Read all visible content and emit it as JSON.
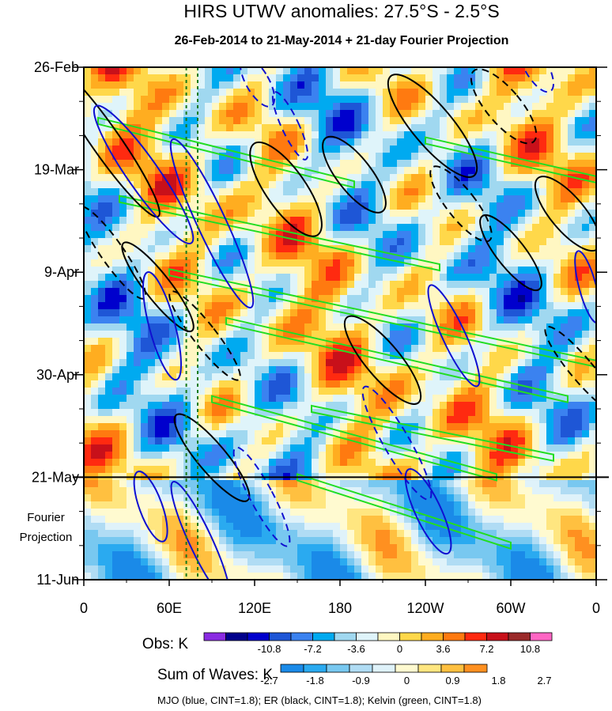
{
  "chart_data": {
    "type": "heatmap",
    "title": "HIRS UTWV anomalies: 27.5°S - 2.5°S",
    "subtitle": "26-Feb-2014 to 21-May-2014 + 21-day Fourier Projection",
    "x_ticks": [
      "0",
      "60E",
      "120E",
      "180",
      "120W",
      "60W",
      "0"
    ],
    "x_tick_lons": [
      0,
      60,
      120,
      180,
      240,
      300,
      360
    ],
    "y_ticks": [
      "26-Feb",
      "19-Mar",
      "9-Apr",
      "30-Apr",
      "21-May",
      "11-Jun"
    ],
    "y_tick_days": [
      0,
      21,
      42,
      63,
      84,
      105
    ],
    "projection_label_lines": [
      "Fourier",
      "Projection"
    ],
    "projection_start_day": 84,
    "reference_lons": [
      72,
      80
    ],
    "obs_colorbar": {
      "label": "Obs: K",
      "levels": [
        -10.8,
        -7.2,
        -3.6,
        0,
        3.6,
        7.2,
        10.8
      ],
      "tick_labels": [
        "-10.8",
        "-7.2",
        "-3.6",
        "0",
        "3.6",
        "7.2",
        "10.8"
      ],
      "colors": [
        "#8a2be2",
        "#00008b",
        "#0000cd",
        "#1e56d6",
        "#3b82f0",
        "#00aaf0",
        "#a0d8f0",
        "#dff4fa",
        "#fff7c2",
        "#ffd84a",
        "#ffad20",
        "#ff7a10",
        "#ff2a10",
        "#c8101a",
        "#9a2a2a",
        "#ff66c4"
      ]
    },
    "waves_colorbar": {
      "label": "Sum of Waves: K",
      "levels": [
        -2.7,
        -1.8,
        -0.9,
        0,
        0.9,
        1.8,
        2.7
      ],
      "tick_labels": [
        "-2.7",
        "-1.8",
        "-0.9",
        "0",
        "0.9",
        "1.8",
        "2.7"
      ],
      "colors": [
        "#1a8ae8",
        "#2aaaf0",
        "#78c8f0",
        "#b0dcf4",
        "#dff2fa",
        "#fffad0",
        "#ffe680",
        "#ffc040",
        "#ff9020"
      ]
    },
    "contour_legend": "MJO (blue, CINT=1.8); ER (black, CINT=1.8); Kelvin (green, CINT=1.8)",
    "contour_colors": {
      "mjo": "#1010d0",
      "er": "#000000",
      "kelvin": "#22dd22"
    },
    "mjo_ellipses": [
      {
        "lon": 42,
        "day": 22,
        "rx_lon": 11,
        "ry_day": 9,
        "tilt": 35,
        "dashed": false
      },
      {
        "lon": 90,
        "day": 32,
        "rx_lon": 10,
        "ry_day": 10,
        "tilt": 25,
        "dashed": false
      },
      {
        "lon": 55,
        "day": 53,
        "rx_lon": 9,
        "ry_day": 6,
        "tilt": 15,
        "dashed": false
      },
      {
        "lon": 122,
        "day": 3,
        "rx_lon": 8,
        "ry_day": 3,
        "tilt": 30,
        "dashed": true
      },
      {
        "lon": 145,
        "day": 12,
        "rx_lon": 6,
        "ry_day": 4,
        "tilt": 25,
        "dashed": true
      },
      {
        "lon": 220,
        "day": 77,
        "rx_lon": 9,
        "ry_day": 7,
        "tilt": 30,
        "dashed": true
      },
      {
        "lon": 260,
        "day": 55,
        "rx_lon": 8,
        "ry_day": 6,
        "tilt": 25,
        "dashed": false
      },
      {
        "lon": 47,
        "day": 90,
        "rx_lon": 8,
        "ry_day": 4,
        "tilt": 20,
        "dashed": false
      },
      {
        "lon": 82,
        "day": 97,
        "rx_lon": 8,
        "ry_day": 7,
        "tilt": 25,
        "dashed": false
      },
      {
        "lon": 242,
        "day": 91,
        "rx_lon": 9,
        "ry_day": 5,
        "tilt": 25,
        "dashed": false
      },
      {
        "lon": 125,
        "day": 88,
        "rx_lon": 8,
        "ry_day": 6,
        "tilt": 28,
        "dashed": true
      },
      {
        "lon": 318,
        "day": 0,
        "rx_lon": 8,
        "ry_day": 3,
        "tilt": 30,
        "dashed": true
      },
      {
        "lon": 354,
        "day": 45,
        "rx_lon": 6,
        "ry_day": 4,
        "tilt": 15,
        "dashed": false
      }
    ],
    "er_ellipses": [
      {
        "lon": 15,
        "day": 15,
        "rx_lon": 10,
        "ry_day": 10,
        "tilt": 35,
        "dashed": false
      },
      {
        "lon": 52,
        "day": 45,
        "rx_lon": 9,
        "ry_day": 6,
        "tilt": 38,
        "dashed": false
      },
      {
        "lon": 85,
        "day": 55,
        "rx_lon": 8,
        "ry_day": 6,
        "tilt": 38,
        "dashed": true
      },
      {
        "lon": 142,
        "day": 25,
        "rx_lon": 14,
        "ry_day": 6,
        "tilt": 35,
        "dashed": false
      },
      {
        "lon": 190,
        "day": 22,
        "rx_lon": 12,
        "ry_day": 5,
        "tilt": 38,
        "dashed": false
      },
      {
        "lon": 245,
        "day": 12,
        "rx_lon": 14,
        "ry_day": 7,
        "tilt": 40,
        "dashed": false
      },
      {
        "lon": 295,
        "day": 8,
        "rx_lon": 12,
        "ry_day": 5,
        "tilt": 40,
        "dashed": true
      },
      {
        "lon": 340,
        "day": 30,
        "rx_lon": 12,
        "ry_day": 5,
        "tilt": 40,
        "dashed": false
      },
      {
        "lon": 20,
        "day": 38,
        "rx_lon": 8,
        "ry_day": 6,
        "tilt": 35,
        "dashed": true
      },
      {
        "lon": 90,
        "day": 80,
        "rx_lon": 10,
        "ry_day": 6,
        "tilt": 40,
        "dashed": false
      },
      {
        "lon": 210,
        "day": 60,
        "rx_lon": 12,
        "ry_day": 6,
        "tilt": 40,
        "dashed": false
      },
      {
        "lon": 300,
        "day": 38,
        "rx_lon": 10,
        "ry_day": 5,
        "tilt": 38,
        "dashed": false
      },
      {
        "lon": 350,
        "day": 62,
        "rx_lon": 8,
        "ry_day": 6,
        "tilt": 40,
        "dashed": true
      },
      {
        "lon": 265,
        "day": 28,
        "rx_lon": 10,
        "ry_day": 5,
        "tilt": 38,
        "dashed": true
      }
    ],
    "kelvin_bands": [
      {
        "lon0": 10,
        "day0": 11,
        "lon1": 190,
        "day1": 24
      },
      {
        "lon0": 25,
        "day0": 27,
        "lon1": 250,
        "day1": 41
      },
      {
        "lon0": 60,
        "day0": 42,
        "lon1": 380,
        "day1": 62
      },
      {
        "lon0": 100,
        "day0": 52,
        "lon1": 340,
        "day1": 68
      },
      {
        "lon0": 90,
        "day0": 68,
        "lon1": 290,
        "day1": 84
      },
      {
        "lon0": 160,
        "day0": 70,
        "lon1": 330,
        "day1": 80
      },
      {
        "lon0": 150,
        "day0": 84,
        "lon1": 300,
        "day1": 98
      },
      {
        "lon0": 240,
        "day0": 15,
        "lon1": 360,
        "day1": 23
      }
    ]
  }
}
